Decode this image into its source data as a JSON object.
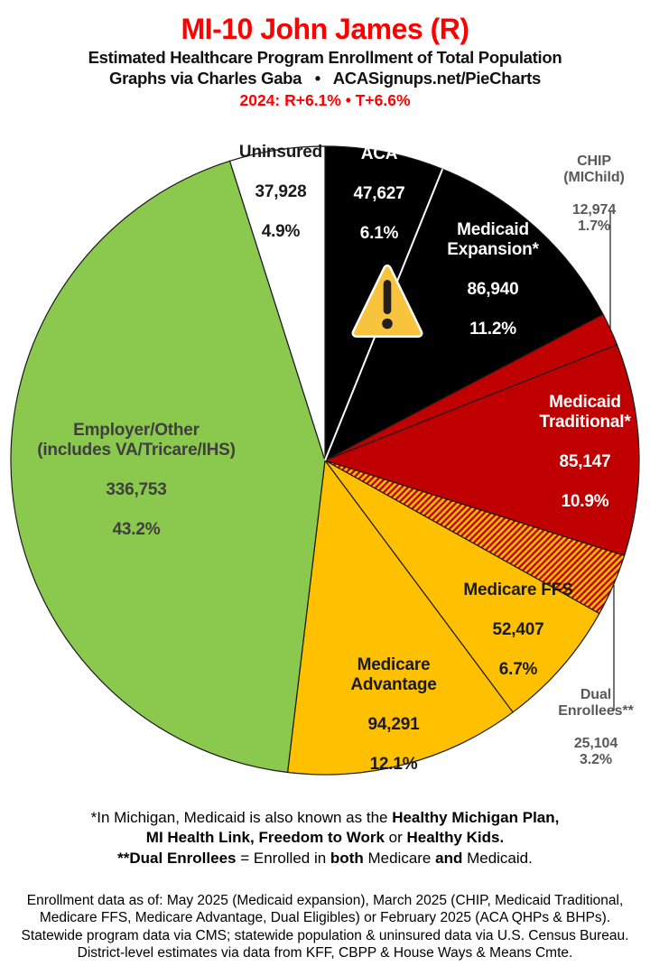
{
  "header": {
    "title": "MI-10 John James (R)",
    "subtitle": "Estimated Healthcare Program Enrollment of Total Population",
    "credit_line": "Graphs via Charles Gaba   •   ACASignups.net/PieCharts",
    "election_line": "2024: R+6.1%  •  T+6.6%",
    "title_color": "#fe0000",
    "election_color": "#fe0000"
  },
  "chart_data": {
    "type": "pie",
    "title": "Estimated Healthcare Program Enrollment of Total Population",
    "start_angle_deg": 0,
    "direction": "clockwise",
    "legend_position": "labels-on-slices",
    "slices": [
      {
        "id": "aca",
        "name": "ACA",
        "value": 47627,
        "value_text": "47,627",
        "pct": 6.1,
        "pct_text": "6.1%",
        "color": "#000000",
        "text_color": "#ffffff",
        "label_placement": "inside"
      },
      {
        "id": "medicaid-expansion",
        "name": "Medicaid\nExpansion*",
        "value": 86940,
        "value_text": "86,940",
        "pct": 11.2,
        "pct_text": "11.2%",
        "color": "#000000",
        "text_color": "#ffffff",
        "label_placement": "inside"
      },
      {
        "id": "chip",
        "name": "CHIP (MIChild)",
        "value": 12974,
        "value_text": "12,974",
        "pct": 1.7,
        "pct_text": "1.7%",
        "color": "#c00000",
        "text_color": "#595959",
        "label_placement": "outside"
      },
      {
        "id": "medicaid-traditional",
        "name": "Medicaid\nTraditional*",
        "value": 85147,
        "value_text": "85,147",
        "pct": 10.9,
        "pct_text": "10.9%",
        "color": "#c00000",
        "text_color": "#ffffff",
        "label_placement": "inside"
      },
      {
        "id": "dual-enrollees",
        "name": "Dual Enrollees**",
        "value": 25104,
        "value_text": "25,104",
        "pct": 3.2,
        "pct_text": "3.2%",
        "color": "#ffc000",
        "hatch_color": "#c00000",
        "pattern": "diagonal-stripes",
        "text_color": "#595959",
        "label_placement": "outside"
      },
      {
        "id": "medicare-ffs",
        "name": "Medicare FFS",
        "value": 52407,
        "value_text": "52,407",
        "pct": 6.7,
        "pct_text": "6.7%",
        "color": "#ffc000",
        "text_color": "#1a1a1a",
        "label_placement": "inside"
      },
      {
        "id": "medicare-advantage",
        "name": "Medicare\nAdvantage",
        "value": 94291,
        "value_text": "94,291",
        "pct": 12.1,
        "pct_text": "12.1%",
        "color": "#ffc000",
        "text_color": "#1a1a1a",
        "label_placement": "inside"
      },
      {
        "id": "employer-other",
        "name": "Employer/Other\n(includes VA/Tricare/IHS)",
        "value": 336753,
        "value_text": "336,753",
        "pct": 43.2,
        "pct_text": "43.2%",
        "color": "#8bc84e",
        "text_color": "#3f3f3f",
        "label_placement": "inside"
      },
      {
        "id": "uninsured",
        "name": "Uninsured",
        "value": 37928,
        "value_text": "37,928",
        "pct": 4.9,
        "pct_text": "4.9%",
        "color": "#ffffff",
        "text_color": "#1a1a1a",
        "label_placement": "inside"
      }
    ]
  },
  "warning_icon": {
    "fill": "#f8c43d",
    "mark_color": "#231f20",
    "border": "#ffffff"
  },
  "footnote1": {
    "lines": [
      [
        {
          "t": "*In Michigan, Medicaid is also known as the ",
          "b": false
        },
        {
          "t": "Healthy Michigan Plan,",
          "b": true
        }
      ],
      [
        {
          "t": "MI Health Link, Freedom to Work",
          "b": true
        },
        {
          "t": " or ",
          "b": false
        },
        {
          "t": "Healthy Kids.",
          "b": true
        }
      ],
      [
        {
          "t": "**Dual Enrollees",
          "b": true
        },
        {
          "t": " = Enrolled in ",
          "b": false
        },
        {
          "t": "both",
          "b": true
        },
        {
          "t": " Medicare ",
          "b": false
        },
        {
          "t": "and",
          "b": true
        },
        {
          "t": " Medicaid.",
          "b": false
        }
      ]
    ]
  },
  "footnote2": {
    "lines": [
      "Enrollment data as of: May 2025 (Medicaid expansion), March 2025 (CHIP, Medicaid Traditional,",
      "Medicare FFS, Medicare Advantage, Dual Eligibles) or February 2025 (ACA QHPs & BHPs).",
      "Statewide program data via CMS; statewide population & uninsured data via U.S. Census Bureau.",
      "District-level estimates via data from KFF, CBPP & House Ways & Means Cmte."
    ]
  }
}
